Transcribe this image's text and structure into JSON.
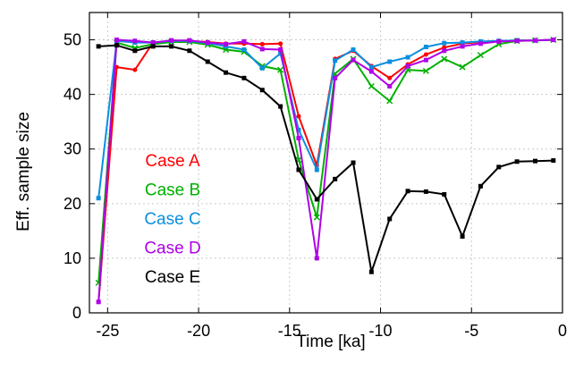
{
  "chart_data": {
    "type": "line",
    "xlabel": "Time [ka]",
    "ylabel": "Eff. sample size",
    "xlim": [
      -26,
      0
    ],
    "ylim": [
      0,
      55
    ],
    "xticks": [
      -25,
      -20,
      -15,
      -10,
      -5,
      0
    ],
    "yticks": [
      0,
      10,
      20,
      30,
      40,
      50
    ],
    "x_tick_labels": [
      "-25",
      "-20",
      "-15",
      "-10",
      "-5",
      "0"
    ],
    "y_tick_labels": [
      "0",
      "10",
      "20",
      "30",
      "40",
      "50"
    ],
    "grid": true,
    "legend_position": "left, inside plot",
    "series": [
      {
        "name": "Case A",
        "color": "#ff0000",
        "marker": "circle",
        "x": [
          -25.5,
          -24.5,
          -23.5,
          -22.5,
          -21.5,
          -20.5,
          -19.5,
          -18.5,
          -17.5,
          -16.5,
          -15.5,
          -14.5,
          -13.5,
          -12.5,
          -11.5,
          -10.5,
          -9.5,
          -8.5,
          -7.5,
          -6.5,
          -5.5,
          -4.5,
          -3.5,
          -2.5,
          -1.5,
          -0.5
        ],
        "y": [
          2,
          45,
          44.5,
          49.5,
          49.8,
          49.8,
          49.6,
          49.3,
          49.3,
          49.2,
          49.3,
          36,
          27,
          46.5,
          48,
          45.2,
          43,
          45.5,
          47.3,
          48.6,
          49.3,
          49.6,
          49.8,
          49.9,
          49.9,
          50
        ]
      },
      {
        "name": "Case B",
        "color": "#00b000",
        "marker": "cross",
        "x": [
          -25.5,
          -24.5,
          -23.5,
          -22.5,
          -21.5,
          -20.5,
          -19.5,
          -18.5,
          -17.5,
          -16.5,
          -15.5,
          -14.5,
          -13.5,
          -12.5,
          -11.5,
          -10.5,
          -9.5,
          -8.5,
          -7.5,
          -6.5,
          -5.5,
          -4.5,
          -3.5,
          -2.5,
          -1.5,
          -0.5
        ],
        "y": [
          5.5,
          49.5,
          48.5,
          49.2,
          49.6,
          49.6,
          49.1,
          48.2,
          47.8,
          45.2,
          44.5,
          28,
          17.5,
          43.8,
          46.5,
          41.5,
          38.8,
          44.5,
          44.3,
          46.5,
          45,
          47.2,
          49.2,
          49.8,
          49.9,
          50
        ]
      },
      {
        "name": "Case C",
        "color": "#0a8fe0",
        "marker": "square",
        "x": [
          -25.5,
          -24.5,
          -23.5,
          -22.5,
          -21.5,
          -20.5,
          -19.5,
          -18.5,
          -17.5,
          -16.5,
          -15.5,
          -14.5,
          -13.5,
          -12.5,
          -11.5,
          -10.5,
          -9.5,
          -8.5,
          -7.5,
          -6.5,
          -5.5,
          -4.5,
          -3.5,
          -2.5,
          -1.5,
          -0.5
        ],
        "y": [
          21,
          49.8,
          49.5,
          49.5,
          49.8,
          49.8,
          49.4,
          48.8,
          48.2,
          44.8,
          47.5,
          33.5,
          26.2,
          46.2,
          48.2,
          45,
          46,
          46.8,
          48.7,
          49.4,
          49.5,
          49.7,
          49.8,
          49.9,
          49.9,
          50
        ]
      },
      {
        "name": "Case D",
        "color": "#b000e8",
        "marker": "square",
        "x": [
          -25.5,
          -24.5,
          -23.5,
          -22.5,
          -21.5,
          -20.5,
          -19.5,
          -18.5,
          -17.5,
          -16.5,
          -15.5,
          -14.5,
          -13.5,
          -12.5,
          -11.5,
          -10.5,
          -9.5,
          -8.5,
          -7.5,
          -6.5,
          -5.5,
          -4.5,
          -3.5,
          -2.5,
          -1.5,
          -0.5
        ],
        "y": [
          2,
          50,
          49.8,
          49.5,
          49.9,
          49.9,
          49.5,
          49.2,
          49.7,
          48.3,
          48.2,
          32,
          10,
          43,
          46.3,
          44.2,
          41.5,
          45.2,
          46.3,
          48,
          48.8,
          49.3,
          49.7,
          49.8,
          49.9,
          50
        ]
      },
      {
        "name": "Case E",
        "color": "#000000",
        "marker": "square",
        "x": [
          -25.5,
          -24.5,
          -23.5,
          -22.5,
          -21.5,
          -20.5,
          -19.5,
          -18.5,
          -17.5,
          -16.5,
          -15.5,
          -14.5,
          -13.5,
          -12.5,
          -11.5,
          -10.5,
          -9.5,
          -8.5,
          -7.5,
          -6.5,
          -5.5,
          -4.5,
          -3.5,
          -2.5,
          -1.5,
          -0.5
        ],
        "y": [
          48.8,
          49,
          48,
          48.8,
          48.8,
          48,
          46,
          44,
          43,
          40.8,
          37.8,
          26.2,
          20.8,
          24.5,
          27.5,
          7.5,
          17.2,
          22.3,
          22.2,
          21.7,
          14,
          23.2,
          26.7,
          27.7,
          27.8,
          27.9
        ]
      }
    ]
  }
}
